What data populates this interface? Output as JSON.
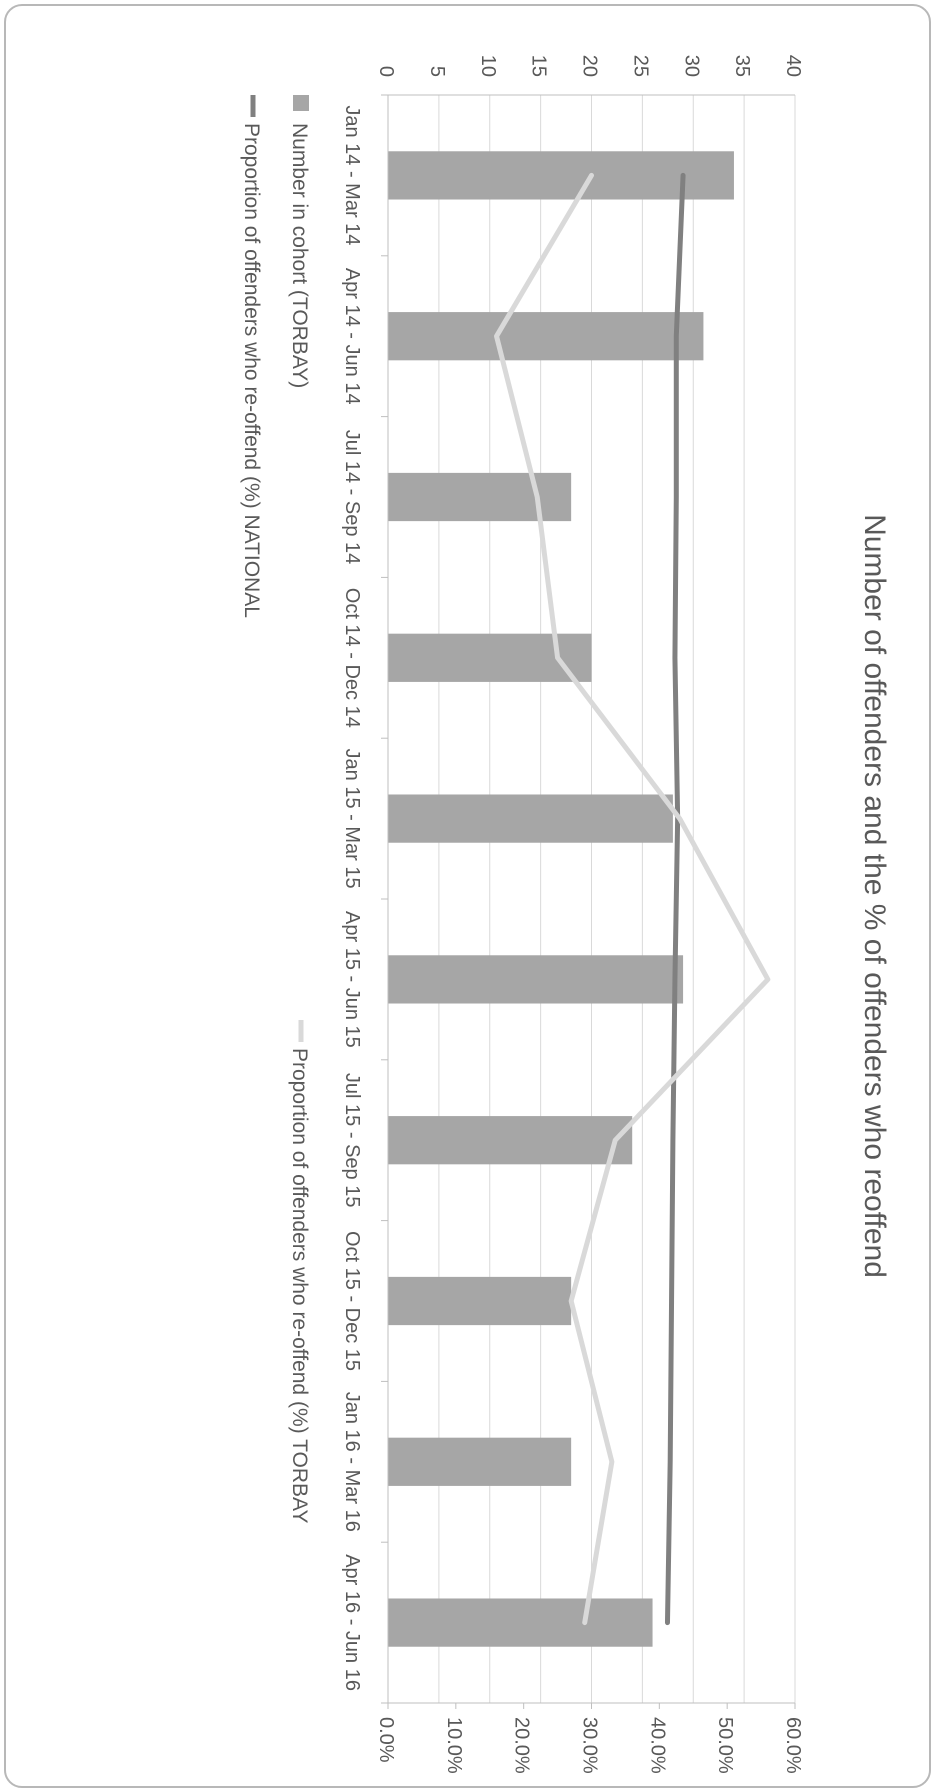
{
  "chart_data": {
    "type": "bar",
    "title": "Number of offenders and the % of offenders who reoffend",
    "categories": [
      "Jan 14 - Mar 14",
      "Apr 14 - Jun 14",
      "Jul 14 - Sep 14",
      "Oct 14 - Dec 14",
      "Jan 15 - Mar 15",
      "Apr 15 - Jun 15",
      "Jul 15 - Sep 15",
      "Oct 15 - Dec 15",
      "Jan 16 - Mar 16",
      "Apr 16 - Jun 16"
    ],
    "y_left": {
      "ticks": [
        "0",
        "5",
        "10",
        "15",
        "20",
        "25",
        "30",
        "35",
        "40"
      ],
      "ylim": [
        0,
        40
      ]
    },
    "y_right": {
      "ticks": [
        "0.0%",
        "10.0%",
        "20.0%",
        "30.0%",
        "40.0%",
        "50.0%",
        "60.0%"
      ],
      "ylim": [
        0,
        60
      ]
    },
    "series": [
      {
        "name": "Number in cohort (TORBAY)",
        "type": "bar",
        "axis": "left",
        "color": "#a6a6a6",
        "values": [
          34,
          31,
          18,
          20,
          28,
          29,
          24,
          18,
          18,
          26
        ]
      },
      {
        "name": "Proportion of offenders who re-offend (%) NATIONAL",
        "type": "line",
        "axis": "right",
        "color": "#808080",
        "values": [
          43.5,
          42.5,
          42.5,
          42.3,
          42.7,
          42.3,
          42.0,
          41.8,
          41.6,
          41.2
        ]
      },
      {
        "name": "Proportion of offenders who re-offend (%) TORBAY",
        "type": "line",
        "axis": "right",
        "color": "#d9d9d9",
        "values": [
          30.0,
          16.0,
          22.0,
          25.0,
          43.0,
          56.0,
          33.5,
          27.0,
          33.0,
          29.0
        ]
      }
    ],
    "grid": true,
    "legend": "bottom"
  }
}
